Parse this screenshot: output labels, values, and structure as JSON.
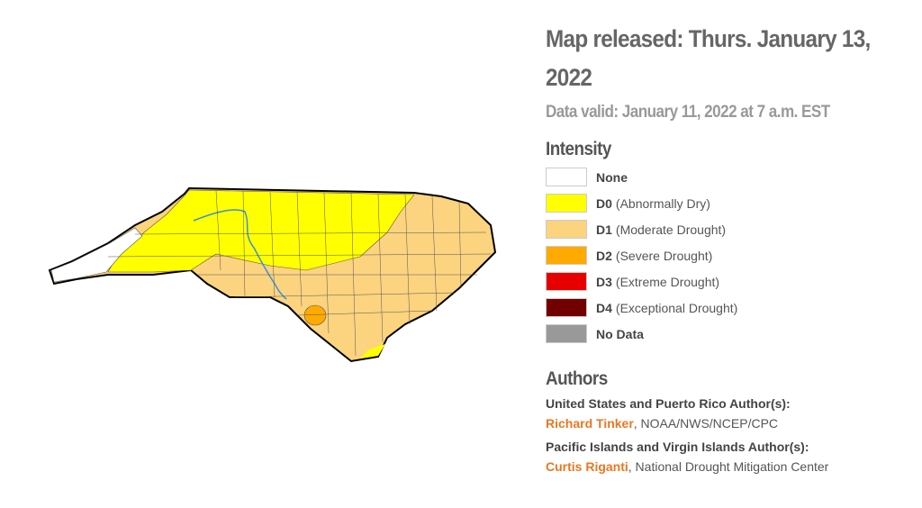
{
  "header": {
    "title": "Map released: Thurs. January 13, 2022",
    "subtitle": "Data valid: January 11, 2022 at 7 a.m. EST"
  },
  "legend": {
    "title": "Intensity",
    "items": [
      {
        "code": "None",
        "desc": null,
        "color": "#ffffff"
      },
      {
        "code": "D0",
        "desc": "(Abnormally Dry)",
        "color": "#ffff00"
      },
      {
        "code": "D1",
        "desc": "(Moderate Drought)",
        "color": "#fcd37f"
      },
      {
        "code": "D2",
        "desc": "(Severe Drought)",
        "color": "#ffaa00"
      },
      {
        "code": "D3",
        "desc": "(Extreme Drought)",
        "color": "#e60000"
      },
      {
        "code": "D4",
        "desc": "(Exceptional Drought)",
        "color": "#730000"
      },
      {
        "code": "No Data",
        "desc": null,
        "color": "#999999"
      }
    ]
  },
  "authors": {
    "title": "Authors",
    "groups": [
      {
        "label": "United States and Puerto Rico Author(s):",
        "name": "Richard Tinker",
        "rest": ", NOAA/NWS/NCEP/CPC"
      },
      {
        "label": "Pacific Islands and Virgin Islands Author(s):",
        "name": "Curtis Riganti",
        "rest": ", National Drought Mitigation Center"
      }
    ]
  }
}
